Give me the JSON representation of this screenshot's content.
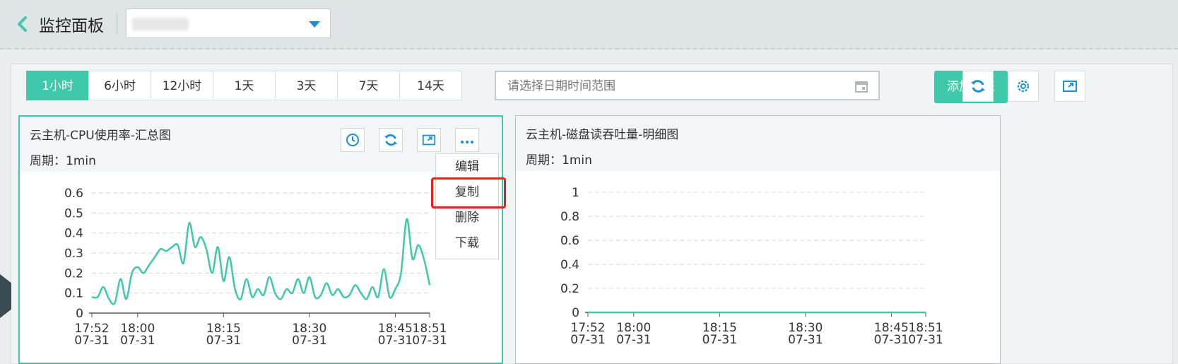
{
  "header": {
    "title": "监控面板"
  },
  "time_tabs": [
    {
      "label": "1小时",
      "active": true
    },
    {
      "label": "6小时",
      "active": false
    },
    {
      "label": "12小时",
      "active": false
    },
    {
      "label": "1天",
      "active": false
    },
    {
      "label": "3天",
      "active": false
    },
    {
      "label": "7天",
      "active": false
    },
    {
      "label": "14天",
      "active": false
    }
  ],
  "date_range": {
    "placeholder": "请选择日期时间范围"
  },
  "toolbar": {
    "add_chart_label": "添加图表"
  },
  "colors": {
    "accent": "#3fc8a9",
    "highlight": "#e2231a",
    "icon_blue": "#1a8fd6"
  },
  "cards": [
    {
      "title": "云主机-CPU使用率-汇总图",
      "period": "周期：1min"
    },
    {
      "title": "云主机-磁盘读吞吐量-明细图",
      "period": "周期：1min"
    }
  ],
  "dropdown": {
    "items": [
      "编辑",
      "复制",
      "删除",
      "下载"
    ],
    "highlighted": "复制"
  },
  "chart_data": [
    {
      "type": "line",
      "title": "云主机-CPU使用率-汇总图",
      "ylim": [
        0,
        0.6
      ],
      "yticks": [
        "0",
        "0.1",
        "0.2",
        "0.3",
        "0.4",
        "0.5",
        "0.6"
      ],
      "xticks": [
        {
          "time": "17:52",
          "date": "07-31"
        },
        {
          "time": "18:00",
          "date": "07-31"
        },
        {
          "time": "18:15",
          "date": "07-31"
        },
        {
          "time": "18:30",
          "date": "07-31"
        },
        {
          "time": "18:45",
          "date": "07-31"
        },
        {
          "time": "18:51",
          "date": "07-31"
        }
      ],
      "x_minutes": [
        0,
        1,
        2,
        3,
        4,
        5,
        6,
        7,
        8,
        9,
        10,
        11,
        12,
        13,
        14,
        15,
        16,
        17,
        18,
        19,
        20,
        21,
        22,
        23,
        24,
        25,
        26,
        27,
        28,
        29,
        30,
        31,
        32,
        33,
        34,
        35,
        36,
        37,
        38,
        39,
        40,
        41,
        42,
        43,
        44,
        45,
        46,
        47,
        48,
        49,
        50,
        51,
        52,
        53,
        54,
        55,
        56,
        57,
        58,
        59
      ],
      "values": [
        0.08,
        0.08,
        0.13,
        0.07,
        0.05,
        0.17,
        0.07,
        0.2,
        0.23,
        0.2,
        0.24,
        0.28,
        0.32,
        0.31,
        0.33,
        0.34,
        0.25,
        0.45,
        0.33,
        0.38,
        0.32,
        0.2,
        0.33,
        0.16,
        0.28,
        0.12,
        0.07,
        0.17,
        0.08,
        0.12,
        0.09,
        0.18,
        0.1,
        0.07,
        0.12,
        0.1,
        0.17,
        0.1,
        0.18,
        0.08,
        0.09,
        0.15,
        0.09,
        0.12,
        0.08,
        0.09,
        0.14,
        0.1,
        0.07,
        0.13,
        0.08,
        0.22,
        0.08,
        0.12,
        0.2,
        0.47,
        0.27,
        0.34,
        0.27,
        0.14
      ]
    },
    {
      "type": "line",
      "title": "云主机-磁盘读吞吐量-明细图",
      "ylim": [
        0,
        1
      ],
      "yticks": [
        "0",
        "0.2",
        "0.4",
        "0.6",
        "0.8",
        "1"
      ],
      "xticks": [
        {
          "time": "17:52",
          "date": "07-31"
        },
        {
          "time": "18:00",
          "date": "07-31"
        },
        {
          "time": "18:15",
          "date": "07-31"
        },
        {
          "time": "18:30",
          "date": "07-31"
        },
        {
          "time": "18:45",
          "date": "07-31"
        },
        {
          "time": "18:51",
          "date": "07-31"
        }
      ],
      "values": [
        0,
        0,
        0,
        0,
        0,
        0,
        0,
        0,
        0,
        0,
        0,
        0,
        0,
        0,
        0,
        0,
        0,
        0,
        0,
        0,
        0,
        0,
        0,
        0,
        0,
        0,
        0,
        0,
        0,
        0,
        0,
        0,
        0,
        0,
        0,
        0,
        0,
        0,
        0,
        0,
        0,
        0,
        0,
        0,
        0,
        0,
        0,
        0,
        0,
        0,
        0,
        0,
        0,
        0,
        0,
        0,
        0,
        0,
        0,
        0
      ]
    }
  ]
}
